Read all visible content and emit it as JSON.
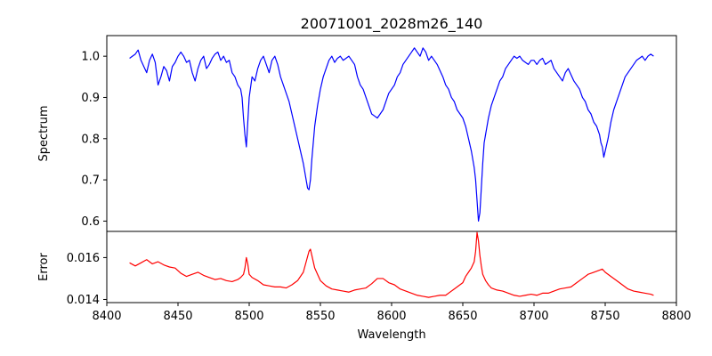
{
  "chart_data": {
    "type": "line",
    "title": "20071001_2028m26_140",
    "xlabel": "Wavelength",
    "xlim": [
      8400,
      8800
    ],
    "xticks": [
      8400,
      8450,
      8500,
      8550,
      8600,
      8650,
      8700,
      8750,
      8800
    ],
    "grid": false,
    "panels": [
      {
        "name": "spectrum",
        "ylabel": "Spectrum",
        "ylim": [
          0.575,
          1.05
        ],
        "yticks": [
          0.6,
          0.7,
          0.8,
          0.9,
          1.0
        ],
        "ytick_labels": [
          "0.6",
          "0.7",
          "0.8",
          "0.9",
          "1.0"
        ],
        "color": "#0000ff",
        "x": [
          8416,
          8418,
          8420,
          8422,
          8424,
          8426,
          8428,
          8430,
          8432,
          8434,
          8436,
          8438,
          8440,
          8442,
          8444,
          8446,
          8448,
          8450,
          8452,
          8454,
          8456,
          8458,
          8460,
          8462,
          8464,
          8466,
          8468,
          8470,
          8472,
          8474,
          8476,
          8478,
          8480,
          8482,
          8484,
          8486,
          8488,
          8490,
          8492,
          8494,
          8495,
          8496,
          8497,
          8498,
          8499,
          8500,
          8502,
          8504,
          8506,
          8508,
          8510,
          8512,
          8514,
          8516,
          8518,
          8520,
          8522,
          8524,
          8526,
          8528,
          8530,
          8532,
          8534,
          8536,
          8538,
          8540,
          8541,
          8542,
          8543,
          8544,
          8546,
          8548,
          8550,
          8552,
          8554,
          8556,
          8558,
          8560,
          8562,
          8564,
          8566,
          8568,
          8570,
          8572,
          8574,
          8576,
          8578,
          8580,
          8582,
          8584,
          8586,
          8588,
          8590,
          8592,
          8594,
          8596,
          8598,
          8600,
          8602,
          8604,
          8606,
          8608,
          8610,
          8612,
          8614,
          8616,
          8618,
          8620,
          8622,
          8624,
          8626,
          8628,
          8630,
          8632,
          8634,
          8636,
          8638,
          8640,
          8642,
          8644,
          8646,
          8648,
          8650,
          8652,
          8654,
          8656,
          8658,
          8659,
          8660,
          8661,
          8662,
          8663,
          8664,
          8665,
          8666,
          8668,
          8670,
          8672,
          8674,
          8676,
          8678,
          8680,
          8682,
          8684,
          8686,
          8688,
          8690,
          8692,
          8694,
          8696,
          8698,
          8700,
          8702,
          8704,
          8706,
          8708,
          8710,
          8712,
          8714,
          8716,
          8718,
          8720,
          8722,
          8724,
          8726,
          8728,
          8730,
          8732,
          8734,
          8736,
          8738,
          8740,
          8742,
          8744,
          8746,
          8747,
          8748,
          8749,
          8750,
          8752,
          8754,
          8756,
          8758,
          8760,
          8762,
          8764,
          8766,
          8768,
          8770,
          8772,
          8774,
          8776,
          8778,
          8780,
          8782,
          8784
        ],
        "y": [
          0.995,
          1.0,
          1.005,
          1.015,
          0.99,
          0.975,
          0.96,
          0.99,
          1.005,
          0.985,
          0.93,
          0.95,
          0.975,
          0.965,
          0.94,
          0.975,
          0.985,
          1.0,
          1.01,
          1.0,
          0.985,
          0.99,
          0.96,
          0.94,
          0.97,
          0.99,
          1.0,
          0.97,
          0.98,
          0.995,
          1.005,
          1.01,
          0.99,
          1.0,
          0.985,
          0.99,
          0.96,
          0.95,
          0.93,
          0.92,
          0.9,
          0.85,
          0.81,
          0.78,
          0.84,
          0.9,
          0.95,
          0.94,
          0.97,
          0.99,
          1.0,
          0.98,
          0.96,
          0.99,
          1.0,
          0.98,
          0.95,
          0.93,
          0.91,
          0.89,
          0.86,
          0.83,
          0.8,
          0.77,
          0.74,
          0.7,
          0.68,
          0.676,
          0.7,
          0.75,
          0.83,
          0.88,
          0.92,
          0.95,
          0.97,
          0.99,
          1.0,
          0.985,
          0.995,
          1.0,
          0.99,
          0.995,
          1.0,
          0.99,
          0.98,
          0.95,
          0.93,
          0.92,
          0.9,
          0.88,
          0.86,
          0.855,
          0.85,
          0.86,
          0.87,
          0.89,
          0.91,
          0.92,
          0.93,
          0.95,
          0.96,
          0.98,
          0.99,
          1.0,
          1.01,
          1.02,
          1.01,
          1.0,
          1.02,
          1.01,
          0.99,
          1.0,
          0.99,
          0.98,
          0.965,
          0.95,
          0.93,
          0.92,
          0.9,
          0.89,
          0.87,
          0.86,
          0.85,
          0.83,
          0.8,
          0.77,
          0.73,
          0.7,
          0.65,
          0.6,
          0.62,
          0.68,
          0.74,
          0.79,
          0.81,
          0.85,
          0.88,
          0.9,
          0.92,
          0.94,
          0.95,
          0.97,
          0.98,
          0.99,
          1.0,
          0.995,
          1.0,
          0.99,
          0.985,
          0.98,
          0.99,
          0.99,
          0.98,
          0.99,
          0.995,
          0.98,
          0.985,
          0.99,
          0.97,
          0.96,
          0.95,
          0.94,
          0.96,
          0.97,
          0.955,
          0.94,
          0.93,
          0.92,
          0.9,
          0.89,
          0.87,
          0.86,
          0.84,
          0.83,
          0.81,
          0.79,
          0.78,
          0.755,
          0.77,
          0.8,
          0.84,
          0.87,
          0.89,
          0.91,
          0.93,
          0.95,
          0.96,
          0.97,
          0.98,
          0.99,
          0.995,
          1.0,
          0.99,
          1.0,
          1.005,
          1.0
        ]
      },
      {
        "name": "error",
        "ylabel": "Error",
        "ylim": [
          0.01385,
          0.01725
        ],
        "yticks": [
          0.014,
          0.016
        ],
        "ytick_labels": [
          "0.014",
          "0.016"
        ],
        "color": "#ff0000",
        "x": [
          8416,
          8420,
          8424,
          8428,
          8432,
          8436,
          8440,
          8444,
          8448,
          8452,
          8456,
          8460,
          8464,
          8468,
          8472,
          8476,
          8480,
          8484,
          8488,
          8492,
          8494,
          8496,
          8497,
          8498,
          8499,
          8500,
          8502,
          8506,
          8510,
          8514,
          8518,
          8522,
          8526,
          8530,
          8534,
          8538,
          8540,
          8542,
          8543,
          8544,
          8546,
          8548,
          8550,
          8554,
          8558,
          8562,
          8566,
          8570,
          8574,
          8578,
          8582,
          8586,
          8590,
          8594,
          8598,
          8602,
          8606,
          8610,
          8614,
          8618,
          8622,
          8626,
          8630,
          8634,
          8638,
          8642,
          8646,
          8650,
          8652,
          8654,
          8656,
          8658,
          8659,
          8660,
          8661,
          8662,
          8663,
          8664,
          8666,
          8668,
          8670,
          8674,
          8678,
          8682,
          8686,
          8690,
          8694,
          8698,
          8702,
          8706,
          8710,
          8714,
          8718,
          8722,
          8726,
          8730,
          8734,
          8738,
          8742,
          8746,
          8748,
          8750,
          8754,
          8758,
          8762,
          8766,
          8770,
          8774,
          8778,
          8782,
          8784
        ],
        "y": [
          0.01575,
          0.0156,
          0.01575,
          0.0159,
          0.0157,
          0.0158,
          0.01565,
          0.01555,
          0.0155,
          0.01525,
          0.0151,
          0.0152,
          0.0153,
          0.01515,
          0.01505,
          0.01495,
          0.015,
          0.0149,
          0.01485,
          0.01495,
          0.01505,
          0.0152,
          0.0155,
          0.016,
          0.0157,
          0.0152,
          0.01505,
          0.0149,
          0.0147,
          0.01465,
          0.0146,
          0.0146,
          0.01455,
          0.0147,
          0.0149,
          0.0153,
          0.0158,
          0.0163,
          0.0164,
          0.0161,
          0.0155,
          0.0152,
          0.0149,
          0.01465,
          0.0145,
          0.01445,
          0.0144,
          0.01435,
          0.01445,
          0.0145,
          0.01455,
          0.01475,
          0.015,
          0.015,
          0.0148,
          0.0147,
          0.0145,
          0.0144,
          0.0143,
          0.0142,
          0.01415,
          0.0141,
          0.01415,
          0.0142,
          0.0142,
          0.0144,
          0.0146,
          0.0148,
          0.0151,
          0.0153,
          0.0155,
          0.0158,
          0.0163,
          0.0172,
          0.0168,
          0.0161,
          0.0156,
          0.0152,
          0.0149,
          0.0147,
          0.01455,
          0.01445,
          0.0144,
          0.0143,
          0.0142,
          0.01415,
          0.0142,
          0.01425,
          0.0142,
          0.0143,
          0.0143,
          0.0144,
          0.0145,
          0.01455,
          0.0146,
          0.0148,
          0.015,
          0.0152,
          0.0153,
          0.0154,
          0.01545,
          0.0153,
          0.0151,
          0.0149,
          0.0147,
          0.0145,
          0.0144,
          0.01435,
          0.0143,
          0.01425,
          0.0142
        ]
      }
    ]
  }
}
